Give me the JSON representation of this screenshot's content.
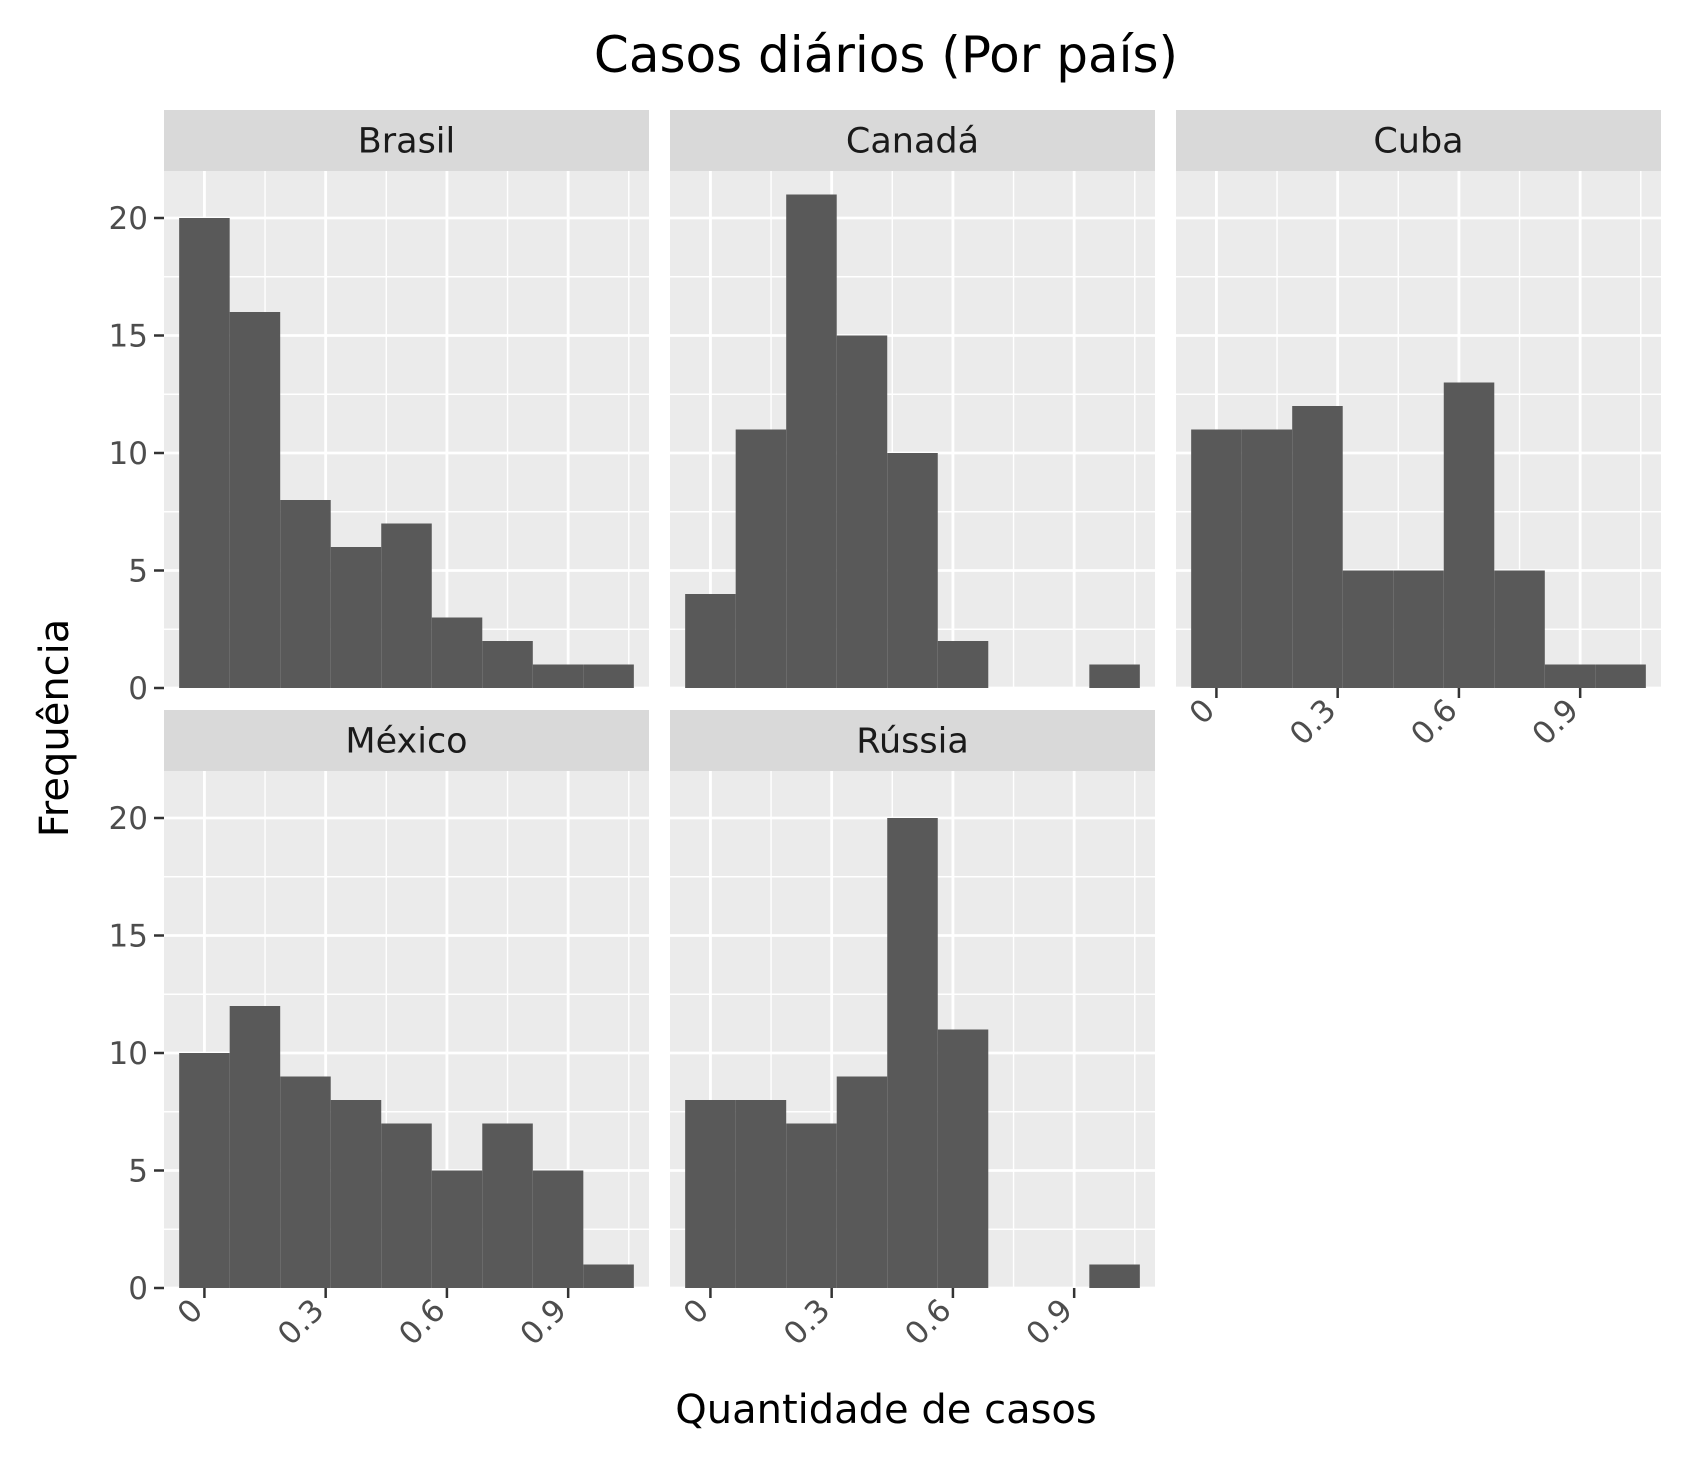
{
  "chart_data": {
    "type": "bar",
    "title": "Casos diários (Por país)",
    "xlabel": "Quantidade de casos",
    "ylabel": "Frequência",
    "xlim": [
      -0.1,
      1.1
    ],
    "ylim": [
      0,
      22
    ],
    "x_ticks": [
      {
        "value": 0,
        "label": "0"
      },
      {
        "value": 0.3,
        "label": "0.3"
      },
      {
        "value": 0.6,
        "label": "0.6"
      },
      {
        "value": 0.9,
        "label": "0.9"
      }
    ],
    "y_ticks": [
      {
        "value": 0,
        "label": "0"
      },
      {
        "value": 5,
        "label": "5"
      },
      {
        "value": 10,
        "label": "10"
      },
      {
        "value": 15,
        "label": "15"
      },
      {
        "value": 20,
        "label": "20"
      }
    ],
    "bin_edges": [
      -0.0625,
      0.0625,
      0.1875,
      0.3125,
      0.4375,
      0.5625,
      0.6875,
      0.8125,
      0.9375,
      1.0625
    ],
    "grid": true,
    "bar_color": "#595959",
    "panel_background": "#ebebeb",
    "strip_background": "#d9d9d9",
    "facets": [
      {
        "name": "Brasil",
        "values": [
          20,
          16,
          8,
          6,
          7,
          3,
          2,
          1,
          1
        ]
      },
      {
        "name": "Canadá",
        "values": [
          4,
          11,
          21,
          15,
          10,
          2,
          0,
          0,
          1
        ]
      },
      {
        "name": "Cuba",
        "values": [
          11,
          11,
          12,
          5,
          5,
          13,
          5,
          1,
          1
        ]
      },
      {
        "name": "México",
        "values": [
          10,
          12,
          9,
          8,
          7,
          5,
          7,
          5,
          1
        ]
      },
      {
        "name": "Rússia",
        "values": [
          8,
          8,
          7,
          9,
          20,
          11,
          0,
          0,
          1
        ]
      }
    ]
  }
}
